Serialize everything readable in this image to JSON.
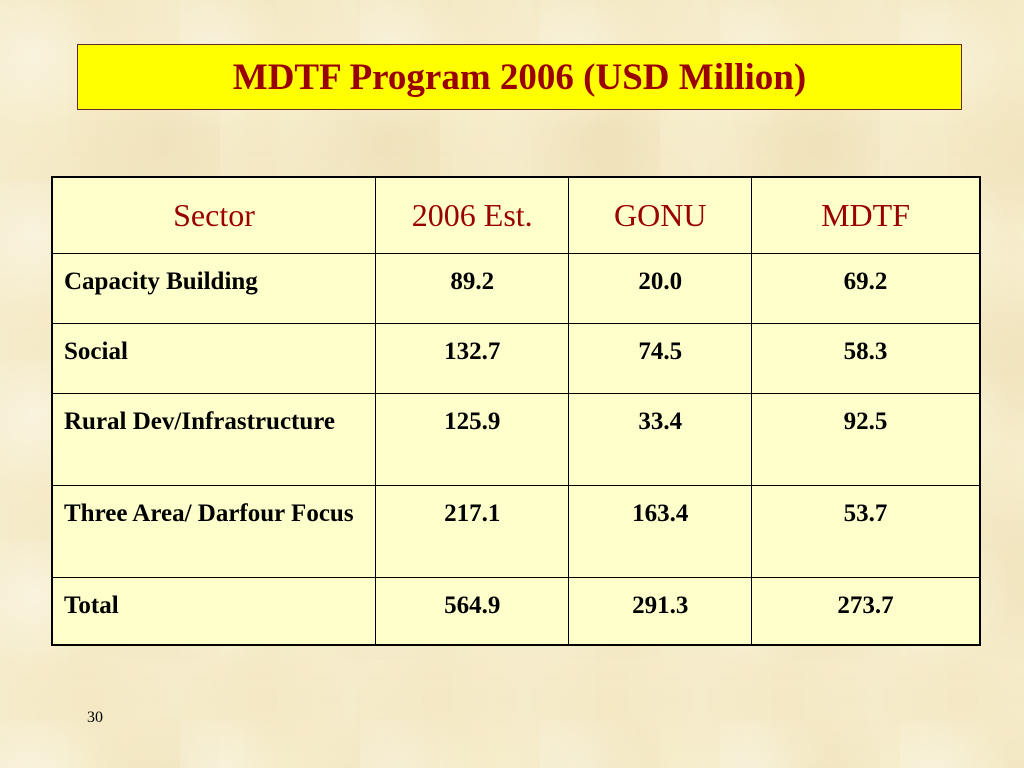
{
  "slide": {
    "title": "MDTF Program 2006 (USD Million)",
    "page_number": "30"
  },
  "table": {
    "headers": [
      "Sector",
      "2006 Est.",
      "GONU",
      "MDTF"
    ],
    "rows": [
      {
        "sector": "Capacity Building",
        "est_2006": "89.2",
        "gonu": "20.0",
        "mdtf": "69.2"
      },
      {
        "sector": "Social",
        "est_2006": "132.7",
        "gonu": "74.5",
        "mdtf": "58.3"
      },
      {
        "sector": "Rural Dev/Infrastructure",
        "est_2006": "125.9",
        "gonu": "33.4",
        "mdtf": "92.5"
      },
      {
        "sector": "Three Area/ Darfour Focus",
        "est_2006": "217.1",
        "gonu": "163.4",
        "mdtf": "53.7"
      },
      {
        "sector": "Total",
        "est_2006": "564.9",
        "gonu": "291.3",
        "mdtf": "273.7"
      }
    ]
  },
  "colors": {
    "title_background": "#ffff00",
    "title_text": "#990000",
    "header_text": "#990000",
    "table_background": "#ffffcc",
    "slide_background": "#f6ecc8"
  }
}
